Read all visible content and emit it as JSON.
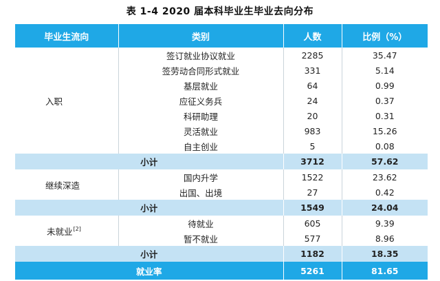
{
  "caption": "表 1-4   2020 届本科毕业生毕业去向分布",
  "headers": [
    "毕业生流向",
    "类别",
    "人数",
    "比例（%）"
  ],
  "groups": {
    "employed": {
      "label": "入职",
      "rows": [
        {
          "category": "签订就业协议就业",
          "count": "2285",
          "pct": "35.47"
        },
        {
          "category": "签劳动合同形式就业",
          "count": "331",
          "pct": "5.14"
        },
        {
          "category": "基层就业",
          "count": "64",
          "pct": "0.99"
        },
        {
          "category": "应征义务兵",
          "count": "24",
          "pct": "0.37"
        },
        {
          "category": "科研助理",
          "count": "20",
          "pct": "0.31"
        },
        {
          "category": "灵活就业",
          "count": "983",
          "pct": "15.26"
        },
        {
          "category": "自主创业",
          "count": "5",
          "pct": "0.08"
        }
      ],
      "subtotal": {
        "label": "小计",
        "count": "3712",
        "pct": "57.62"
      }
    },
    "study": {
      "label": "继续深造",
      "rows": [
        {
          "category": "国内升学",
          "count": "1522",
          "pct": "23.62"
        },
        {
          "category": "出国、出境",
          "count": "27",
          "pct": "0.42"
        }
      ],
      "subtotal": {
        "label": "小计",
        "count": "1549",
        "pct": "24.04"
      }
    },
    "unemployed": {
      "label": "未就业",
      "note": "[2]",
      "rows": [
        {
          "category": "待就业",
          "count": "605",
          "pct": "9.39"
        },
        {
          "category": "暂不就业",
          "count": "577",
          "pct": "8.96"
        }
      ],
      "subtotal": {
        "label": "小计",
        "count": "1182",
        "pct": "18.35"
      }
    }
  },
  "total": {
    "label": "就业率",
    "count": "5261",
    "pct": "81.65"
  }
}
